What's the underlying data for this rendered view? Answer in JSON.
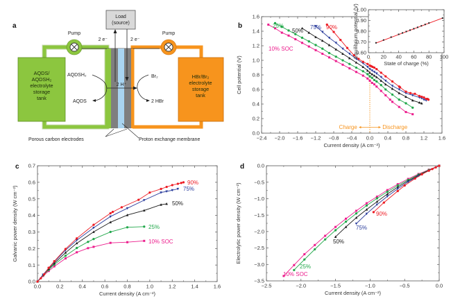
{
  "figure": {
    "panel_a": {
      "letter": "a",
      "load_label_line1": "Load",
      "load_label_line2": "(source)",
      "pump_left": "Pump",
      "pump_right": "Pump",
      "electron_left": "2 e⁻",
      "electron_right": "2 e⁻",
      "left_tank_lines": [
        "AQDS/",
        "AQDSH₂",
        "electrolyte",
        "storage",
        "tank"
      ],
      "right_tank_lines": [
        "HBr/Br₂",
        "electrolyte",
        "storage",
        "tank"
      ],
      "left_reactant": "AQDSH₂",
      "left_product": "AQDS",
      "right_reactant": "Br₂",
      "right_product": "2 HBr",
      "proton_label": "2 H⁺",
      "electrodes_caption": "Porous carbon electrodes",
      "membrane_caption": "Proton exchange membrane",
      "colors": {
        "left": "#8cc63f",
        "left_dark": "#5f8f23",
        "right": "#f7941d",
        "right_dark": "#c96d0a",
        "electrode": "#7f7f7f",
        "membrane": "#a9d4f0"
      }
    }
  },
  "chart_data": [
    {
      "panel": "b",
      "type": "line",
      "title": "",
      "xlabel": "Current density (A cm⁻²)",
      "ylabel": "Cell potential (V)",
      "xlim": [
        -2.4,
        1.6
      ],
      "ylim": [
        0.0,
        1.6
      ],
      "xticks": [
        -2.4,
        -2.0,
        -1.6,
        -1.2,
        -0.8,
        -0.4,
        0.0,
        0.4,
        0.8,
        1.2,
        1.6
      ],
      "xtick_labels": [
        "−2.4",
        "−2.0",
        "−1.6",
        "−1.2",
        "−0.8",
        "−0.4",
        "0.0",
        "0.4",
        "0.8",
        "1.2",
        "1.6"
      ],
      "yticks": [
        0.0,
        0.2,
        0.4,
        0.6,
        0.8,
        1.0,
        1.2,
        1.4,
        1.6
      ],
      "ytick_labels": [
        "0.0",
        "0.2",
        "0.4",
        "0.6",
        "0.8",
        "1.0",
        "1.2",
        "1.4",
        "1.6"
      ],
      "annotations": {
        "charge": "Charge",
        "discharge": "Discharge"
      },
      "series": [
        {
          "name": "10% SOC",
          "color": "#ec1c8c",
          "marker": "square",
          "x": [
            -2.25,
            -2.1,
            -1.95,
            -1.8,
            -1.65,
            -1.5,
            -1.35,
            -1.2,
            -1.05,
            -0.9,
            -0.75,
            -0.6,
            -0.45,
            -0.3,
            -0.15,
            -0.05,
            0.0,
            0.05,
            0.1,
            0.15,
            0.25,
            0.35,
            0.45,
            0.5,
            0.65,
            0.8,
            0.95
          ],
          "y": [
            1.49,
            1.44,
            1.38,
            1.34,
            1.29,
            1.24,
            1.19,
            1.14,
            1.09,
            1.04,
            0.99,
            0.94,
            0.89,
            0.84,
            0.79,
            0.75,
            0.72,
            0.69,
            0.67,
            0.64,
            0.58,
            0.52,
            0.46,
            0.43,
            0.36,
            0.29,
            0.26
          ]
        },
        {
          "name": "25%",
          "color": "#22a84b",
          "marker": "circle",
          "x": [
            -2.1,
            -1.95,
            -1.8,
            -1.65,
            -1.5,
            -1.35,
            -1.2,
            -1.05,
            -0.9,
            -0.75,
            -0.6,
            -0.45,
            -0.3,
            -0.15,
            -0.05,
            0.0,
            0.05,
            0.1,
            0.15,
            0.25,
            0.35,
            0.5,
            0.65,
            0.8,
            0.95
          ],
          "y": [
            1.51,
            1.46,
            1.41,
            1.36,
            1.31,
            1.26,
            1.21,
            1.16,
            1.1,
            1.05,
            1.0,
            0.95,
            0.9,
            0.85,
            0.81,
            0.78,
            0.76,
            0.73,
            0.71,
            0.66,
            0.6,
            0.53,
            0.46,
            0.41,
            0.35
          ]
        },
        {
          "name": "50%",
          "color": "#1a1a1a",
          "marker": "triangle-up",
          "x": [
            -1.5,
            -1.35,
            -1.2,
            -1.05,
            -0.9,
            -0.75,
            -0.6,
            -0.45,
            -0.3,
            -0.15,
            -0.05,
            0.0,
            0.05,
            0.1,
            0.15,
            0.25,
            0.35,
            0.5,
            0.65,
            0.8,
            0.95,
            1.1,
            1.15
          ],
          "y": [
            1.44,
            1.38,
            1.32,
            1.27,
            1.21,
            1.15,
            1.09,
            1.03,
            0.97,
            0.91,
            0.86,
            0.83,
            0.81,
            0.79,
            0.77,
            0.72,
            0.67,
            0.61,
            0.55,
            0.5,
            0.45,
            0.42,
            0.41
          ]
        },
        {
          "name": "75%",
          "color": "#2b3d9c",
          "marker": "triangle-down",
          "x": [
            -1.2,
            -1.05,
            -0.9,
            -0.75,
            -0.6,
            -0.45,
            -0.3,
            -0.15,
            -0.05,
            0.0,
            0.05,
            0.1,
            0.15,
            0.25,
            0.35,
            0.5,
            0.65,
            0.8,
            0.95,
            1.1,
            1.15,
            1.2,
            1.25
          ],
          "y": [
            1.47,
            1.39,
            1.31,
            1.24,
            1.16,
            1.09,
            1.02,
            0.96,
            0.91,
            0.88,
            0.86,
            0.84,
            0.82,
            0.77,
            0.72,
            0.65,
            0.6,
            0.55,
            0.52,
            0.49,
            0.48,
            0.46,
            0.45
          ]
        },
        {
          "name": "90%",
          "color": "#ed1c24",
          "marker": "circle",
          "x": [
            -0.95,
            -0.8,
            -0.65,
            -0.5,
            -0.35,
            -0.25,
            -0.15,
            -0.05,
            0.0,
            0.03,
            0.06,
            0.1,
            0.15,
            0.25,
            0.35,
            0.5,
            0.65,
            0.67,
            0.8,
            0.9,
            1.0,
            1.1,
            1.15,
            1.2,
            1.25,
            1.28,
            1.3
          ],
          "y": [
            1.49,
            1.39,
            1.28,
            1.17,
            1.07,
            1.02,
            0.98,
            0.95,
            0.93,
            0.92,
            0.91,
            0.9,
            0.88,
            0.83,
            0.78,
            0.71,
            0.64,
            0.63,
            0.57,
            0.55,
            0.54,
            0.51,
            0.5,
            0.49,
            0.47,
            0.47,
            0.46
          ]
        }
      ],
      "inset": {
        "type": "scatter",
        "xlabel": "State of charge (%)",
        "ylabel": "Equilibrium potential (V)",
        "xlim": [
          0,
          100
        ],
        "ylim": [
          0.6,
          1.0
        ],
        "xticks": [
          0,
          20,
          40,
          60,
          80,
          100
        ],
        "xtick_labels": [
          "0",
          "20",
          "40",
          "60",
          "80",
          "100"
        ],
        "yticks": [
          0.6,
          0.7,
          0.8,
          0.9,
          1.0
        ],
        "ytick_labels": [
          "0.60",
          "0.70",
          "0.80",
          "0.90",
          "1.00"
        ],
        "points": {
          "x": [
            10,
            20,
            30,
            40,
            45,
            50,
            55,
            60,
            65,
            70,
            75,
            80,
            98
          ],
          "y": [
            0.692,
            0.718,
            0.745,
            0.771,
            0.784,
            0.797,
            0.81,
            0.823,
            0.836,
            0.85,
            0.863,
            0.876,
            0.922
          ]
        },
        "fit_line": {
          "x": [
            10,
            98
          ],
          "y": [
            0.69,
            0.922
          ]
        },
        "point_color": "#1a1a1a",
        "fit_color": "#ed1c24"
      }
    },
    {
      "panel": "c",
      "type": "line",
      "title": "",
      "xlabel": "Current density (A cm⁻²)",
      "ylabel": "Galvanic power density (W cm⁻²)",
      "xlim": [
        0.0,
        1.6
      ],
      "ylim": [
        0.0,
        0.7
      ],
      "xticks": [
        0.0,
        0.2,
        0.4,
        0.6,
        0.8,
        1.0,
        1.2,
        1.4,
        1.6
      ],
      "xtick_labels": [
        "0.0",
        "0.2",
        "0.4",
        "0.6",
        "0.8",
        "1.0",
        "1.2",
        "1.4",
        "1.6"
      ],
      "yticks": [
        0.0,
        0.1,
        0.2,
        0.3,
        0.4,
        0.5,
        0.6,
        0.7
      ],
      "ytick_labels": [
        "0.0",
        "0.1",
        "0.2",
        "0.3",
        "0.4",
        "0.5",
        "0.6",
        "0.7"
      ],
      "series": [
        {
          "name": "10% SOC",
          "color": "#ec1c8c",
          "marker": "square",
          "x": [
            0.0,
            0.05,
            0.1,
            0.15,
            0.25,
            0.35,
            0.45,
            0.5,
            0.65,
            0.8,
            0.95
          ],
          "y": [
            0.0,
            0.034,
            0.064,
            0.092,
            0.14,
            0.177,
            0.202,
            0.21,
            0.234,
            0.238,
            0.246
          ]
        },
        {
          "name": "25%",
          "color": "#22a84b",
          "marker": "circle",
          "x": [
            0.0,
            0.05,
            0.1,
            0.15,
            0.25,
            0.35,
            0.45,
            0.5,
            0.65,
            0.8,
            0.95
          ],
          "y": [
            0.0,
            0.037,
            0.071,
            0.103,
            0.156,
            0.203,
            0.24,
            0.257,
            0.3,
            0.328,
            0.332
          ]
        },
        {
          "name": "50%",
          "color": "#1a1a1a",
          "marker": "triangle-up",
          "x": [
            0.0,
            0.05,
            0.1,
            0.15,
            0.25,
            0.35,
            0.5,
            0.65,
            0.8,
            0.95,
            1.1,
            1.15
          ],
          "y": [
            0.0,
            0.04,
            0.077,
            0.111,
            0.175,
            0.232,
            0.3,
            0.359,
            0.402,
            0.43,
            0.465,
            0.47
          ]
        },
        {
          "name": "75%",
          "color": "#2b3d9c",
          "marker": "triangle-down",
          "x": [
            0.0,
            0.05,
            0.1,
            0.15,
            0.25,
            0.35,
            0.5,
            0.65,
            0.8,
            0.95,
            1.1,
            1.15,
            1.2,
            1.25
          ],
          "y": [
            0.0,
            0.042,
            0.082,
            0.12,
            0.19,
            0.25,
            0.325,
            0.393,
            0.443,
            0.492,
            0.538,
            0.545,
            0.552,
            0.56
          ]
        },
        {
          "name": "90%",
          "color": "#ed1c24",
          "marker": "circle",
          "x": [
            0.0,
            0.03,
            0.06,
            0.1,
            0.15,
            0.25,
            0.35,
            0.5,
            0.65,
            0.67,
            0.75,
            0.9,
            1.0,
            1.1,
            1.15,
            1.2,
            1.25,
            1.28,
            1.3
          ],
          "y": [
            0.0,
            0.02,
            0.044,
            0.083,
            0.123,
            0.197,
            0.261,
            0.343,
            0.413,
            0.421,
            0.449,
            0.494,
            0.538,
            0.56,
            0.572,
            0.583,
            0.591,
            0.596,
            0.6
          ]
        }
      ]
    },
    {
      "panel": "d",
      "type": "line",
      "title": "",
      "xlabel": "Current density (A cm⁻²)",
      "ylabel": "Electrolytic power density (W cm⁻²)",
      "xlim": [
        -2.5,
        0.0
      ],
      "ylim": [
        -3.5,
        0.0
      ],
      "xticks": [
        -2.5,
        -2.0,
        -1.5,
        -1.0,
        -0.5,
        0.0
      ],
      "xtick_labels": [
        "−2.5",
        "−2.0",
        "−1.5",
        "−1.0",
        "−0.5",
        "0.0"
      ],
      "yticks": [
        -3.5,
        -3.0,
        -2.5,
        -2.0,
        -1.5,
        -1.0,
        -0.5,
        0.0
      ],
      "ytick_labels": [
        "−3.5",
        "−3.0",
        "−2.5",
        "−2.0",
        "−1.5",
        "−1.0",
        "−0.5",
        "0.0"
      ],
      "series": [
        {
          "name": "10% SOC",
          "color": "#ec1c8c",
          "marker": "square",
          "x": [
            -2.25,
            -2.1,
            -1.95,
            -1.8,
            -1.65,
            -1.5,
            -1.35,
            -1.2,
            -1.05,
            -0.9,
            -0.75,
            -0.6,
            -0.45,
            -0.3,
            -0.15,
            0.0
          ],
          "y": [
            -3.35,
            -3.02,
            -2.69,
            -2.41,
            -2.13,
            -1.86,
            -1.61,
            -1.37,
            -1.14,
            -0.94,
            -0.74,
            -0.56,
            -0.4,
            -0.25,
            -0.12,
            0.0
          ]
        },
        {
          "name": "25%",
          "color": "#22a84b",
          "marker": "circle",
          "x": [
            -2.1,
            -1.95,
            -1.8,
            -1.65,
            -1.5,
            -1.35,
            -1.2,
            -1.05,
            -0.9,
            -0.75,
            -0.6,
            -0.45,
            -0.3,
            -0.15,
            0.0
          ],
          "y": [
            -3.17,
            -2.85,
            -2.54,
            -2.24,
            -1.96,
            -1.7,
            -1.45,
            -1.21,
            -0.99,
            -0.79,
            -0.6,
            -0.43,
            -0.27,
            -0.13,
            0.0
          ]
        },
        {
          "name": "50%",
          "color": "#1a1a1a",
          "marker": "triangle-up",
          "x": [
            -1.5,
            -1.35,
            -1.2,
            -1.05,
            -0.9,
            -0.75,
            -0.6,
            -0.45,
            -0.3,
            -0.15,
            0.0
          ],
          "y": [
            -2.16,
            -1.86,
            -1.58,
            -1.33,
            -1.09,
            -0.86,
            -0.65,
            -0.46,
            -0.29,
            -0.14,
            0.0
          ]
        },
        {
          "name": "75%",
          "color": "#2b3d9c",
          "marker": "triangle-down",
          "x": [
            -1.2,
            -1.05,
            -0.9,
            -0.75,
            -0.6,
            -0.45,
            -0.3,
            -0.15,
            0.0
          ],
          "y": [
            -1.76,
            -1.46,
            -1.18,
            -0.93,
            -0.7,
            -0.49,
            -0.31,
            -0.15,
            0.0
          ]
        },
        {
          "name": "90%",
          "color": "#ed1c24",
          "marker": "circle",
          "x": [
            -0.95,
            -0.8,
            -0.6,
            -0.5,
            -0.35,
            -0.25,
            -0.15,
            -0.1,
            -0.05,
            0.0
          ],
          "y": [
            -1.41,
            -1.12,
            -0.77,
            -0.6,
            -0.39,
            -0.26,
            -0.15,
            -0.1,
            -0.05,
            0.0
          ]
        }
      ]
    }
  ]
}
